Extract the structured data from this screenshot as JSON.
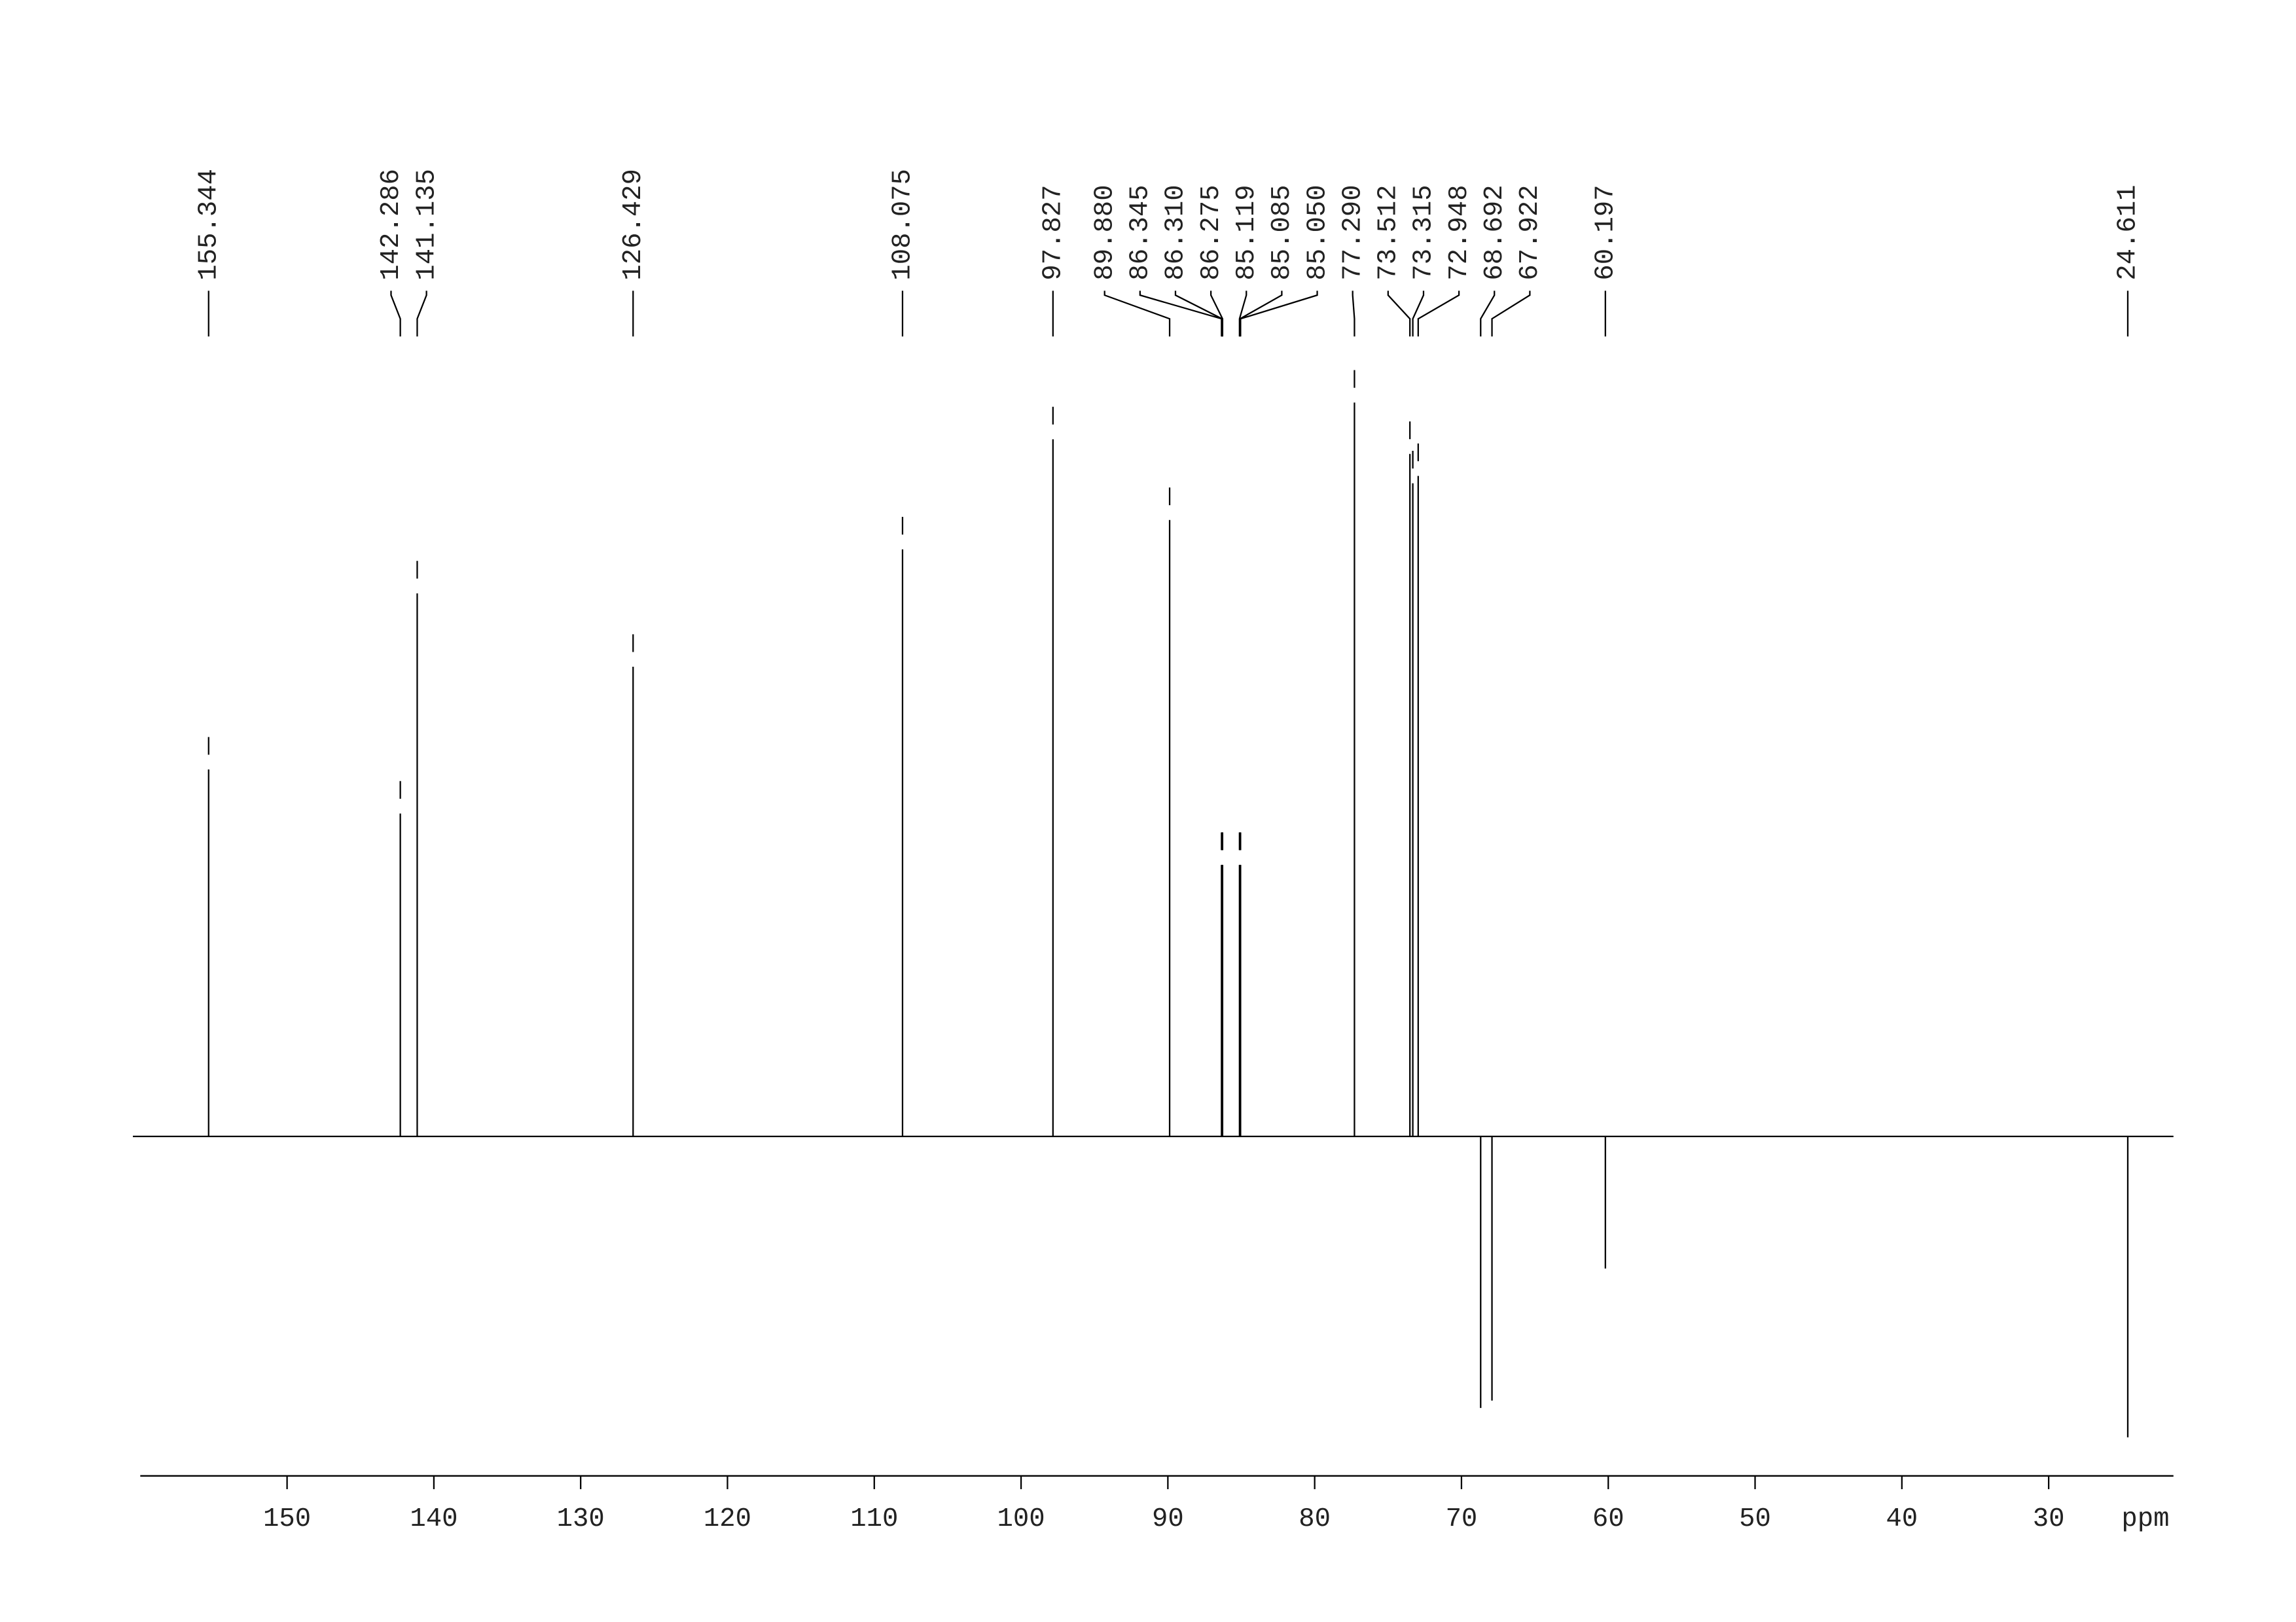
{
  "chart_data": {
    "type": "nmr",
    "x_label": "ppm",
    "x": [
      155.344,
      142.286,
      141.135,
      126.429,
      108.075,
      97.827,
      89.88,
      86.345,
      86.31,
      86.275,
      85.119,
      85.085,
      85.05,
      77.29,
      73.512,
      73.315,
      72.948,
      68.692,
      67.922,
      60.197,
      24.611
    ],
    "peak_labels": [
      "155.344",
      "142.286",
      "141.135",
      "126.429",
      "108.075",
      "97.827",
      "89.880",
      "86.345",
      "86.310",
      "86.275",
      "85.119",
      "85.085",
      "85.050",
      "77.290",
      "73.512",
      "73.315",
      "72.948",
      "68.692",
      "67.922",
      "60.197",
      "24.611"
    ],
    "values": [
      50,
      44,
      74,
      64,
      80,
      95,
      84,
      37,
      37,
      37,
      37,
      37,
      37,
      100,
      93,
      89,
      90,
      -37,
      -36,
      -18,
      -41
    ],
    "xlim": [
      160,
      21.5
    ],
    "xticks": [
      150,
      140,
      130,
      120,
      110,
      100,
      90,
      80,
      70,
      60,
      50,
      40,
      30
    ],
    "ylim": [
      -46,
      109
    ],
    "color": "#000000"
  }
}
